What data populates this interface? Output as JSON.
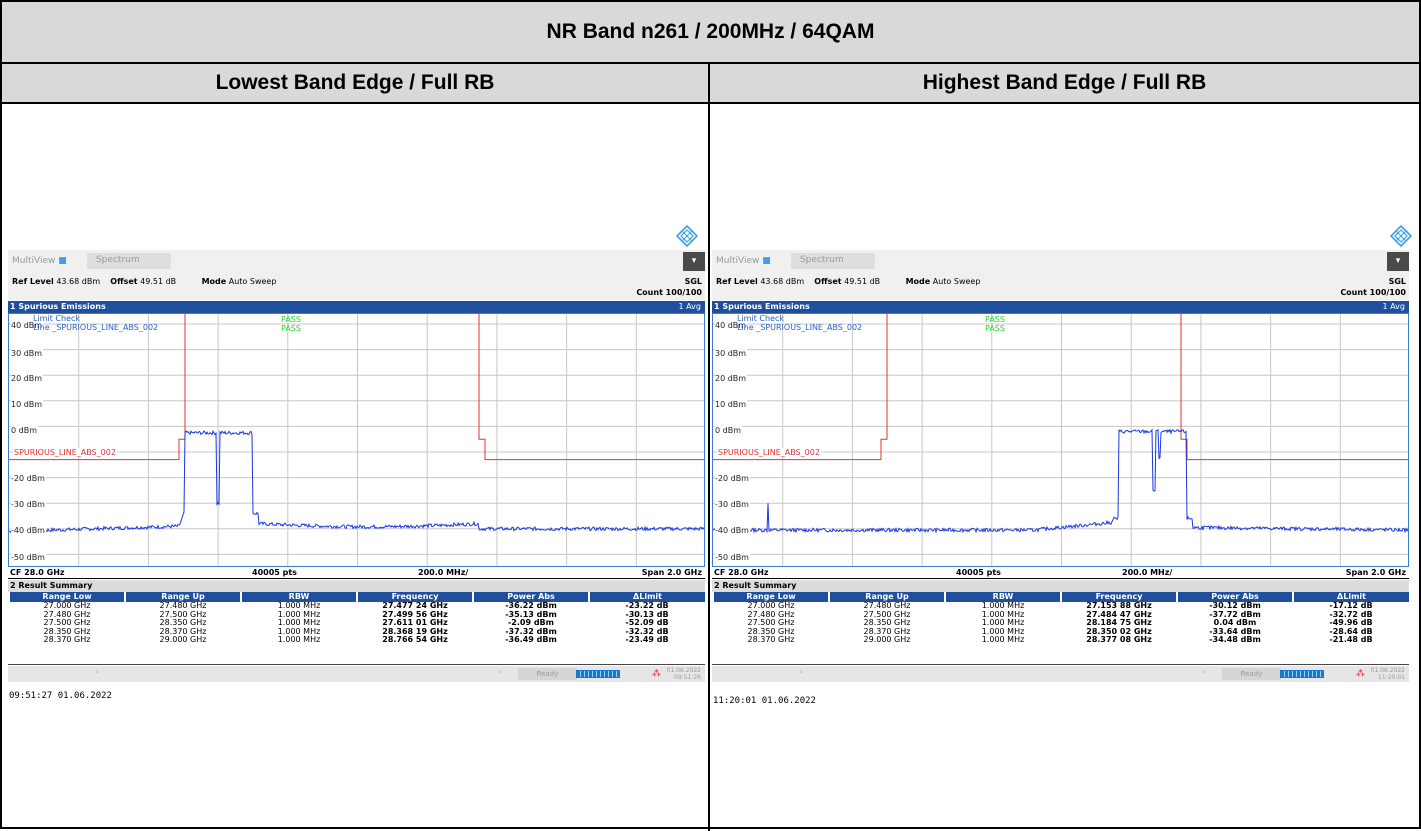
{
  "header": {
    "title": "NR Band n261 / 200MHz / 64QAM"
  },
  "columns": [
    {
      "label": "Lowest Band Edge / Full RB"
    },
    {
      "label": "Highest Band Edge / Full RB"
    }
  ],
  "panels": [
    {
      "app": "MultiView",
      "tab": "Spectrum",
      "ref_level_label": "Ref Level",
      "ref_level": "43.68 dBm",
      "offset_label": "Offset",
      "offset": "49.51 dB",
      "mode_label": "Mode",
      "mode": "Auto Sweep",
      "sgl": "SGL",
      "count": "Count 100/100",
      "window_title": "1 Spurious Emissions",
      "avg": "1 Avg",
      "limit_check": "Limit Check",
      "limit_line": "Line _SPURIOUS_LINE_ABS_002",
      "pass1": "PASS",
      "pass2": "PASS",
      "limit_label": "SPURIOUS_LINE_ABS_002",
      "y_labels": [
        "40 dBm",
        "30 dBm",
        "20 dBm",
        "10 dBm",
        "0 dBm",
        "-20 dBm",
        "-30 dBm",
        "-40 dBm",
        "-50 dBm"
      ],
      "cf": "CF 28.0 GHz",
      "pts": "40005 pts",
      "div": "200.0 MHz/",
      "span": "Span 2.0 GHz",
      "result_title": "2 Result Summary",
      "table_headers": [
        "Range Low",
        "Range Up",
        "RBW",
        "Frequency",
        "Power Abs",
        "ΔLimit"
      ],
      "rows": [
        [
          "27.000 GHz",
          "27.480 GHz",
          "1.000 MHz",
          "27.477 24 GHz",
          "-36.22 dBm",
          "-23.22 dB"
        ],
        [
          "27.480 GHz",
          "27.500 GHz",
          "1.000 MHz",
          "27.499 56 GHz",
          "-35.13 dBm",
          "-30.13 dB"
        ],
        [
          "27.500 GHz",
          "28.350 GHz",
          "1.000 MHz",
          "27.611 01 GHz",
          "-2.09 dBm",
          "-52.09 dB"
        ],
        [
          "28.350 GHz",
          "28.370 GHz",
          "1.000 MHz",
          "28.368 19 GHz",
          "-37.32 dBm",
          "-32.32 dB"
        ],
        [
          "28.370 GHz",
          "29.000 GHz",
          "1.000 MHz",
          "28.766 54 GHz",
          "-36.49 dBm",
          "-23.49 dB"
        ]
      ],
      "status": "Ready",
      "status_date": "01.06.2022",
      "status_time": "09:51:26",
      "footer_time": "09:51:27  01.06.2022"
    },
    {
      "app": "MultiView",
      "tab": "Spectrum",
      "ref_level_label": "Ref Level",
      "ref_level": "43.68 dBm",
      "offset_label": "Offset",
      "offset": "49.51 dB",
      "mode_label": "Mode",
      "mode": "Auto Sweep",
      "sgl": "SGL",
      "count": "Count 100/100",
      "window_title": "1 Spurious Emissions",
      "avg": "1 Avg",
      "limit_check": "Limit Check",
      "limit_line": "Line _SPURIOUS_LINE_ABS_002",
      "pass1": "PASS",
      "pass2": "PASS",
      "limit_label": "SPURIOUS_LINE_ABS_002",
      "y_labels": [
        "40 dBm",
        "30 dBm",
        "20 dBm",
        "10 dBm",
        "0 dBm",
        "-20 dBm",
        "-30 dBm",
        "-40 dBm",
        "-50 dBm"
      ],
      "cf": "CF 28.0 GHz",
      "pts": "40005 pts",
      "div": "200.0 MHz/",
      "span": "Span 2.0 GHz",
      "result_title": "2 Result Summary",
      "table_headers": [
        "Range Low",
        "Range Up",
        "RBW",
        "Frequency",
        "Power Abs",
        "ΔLimit"
      ],
      "rows": [
        [
          "27.000 GHz",
          "27.480 GHz",
          "1.000 MHz",
          "27.153 88 GHz",
          "-30.12 dBm",
          "-17.12 dB"
        ],
        [
          "27.480 GHz",
          "27.500 GHz",
          "1.000 MHz",
          "27.484 47 GHz",
          "-37.72 dBm",
          "-32.72 dB"
        ],
        [
          "27.500 GHz",
          "28.350 GHz",
          "1.000 MHz",
          "28.184 75 GHz",
          "0.04 dBm",
          "-49.96 dB"
        ],
        [
          "28.350 GHz",
          "28.370 GHz",
          "1.000 MHz",
          "28.350 02 GHz",
          "-33.64 dBm",
          "-28.64 dB"
        ],
        [
          "28.370 GHz",
          "29.000 GHz",
          "1.000 MHz",
          "28.377 08 GHz",
          "-34.48 dBm",
          "-21.48 dB"
        ]
      ],
      "status": "Ready",
      "status_date": "01.06.2022",
      "status_time": "11:20:01",
      "footer_time": "11:20:01  01.06.2022"
    }
  ]
}
